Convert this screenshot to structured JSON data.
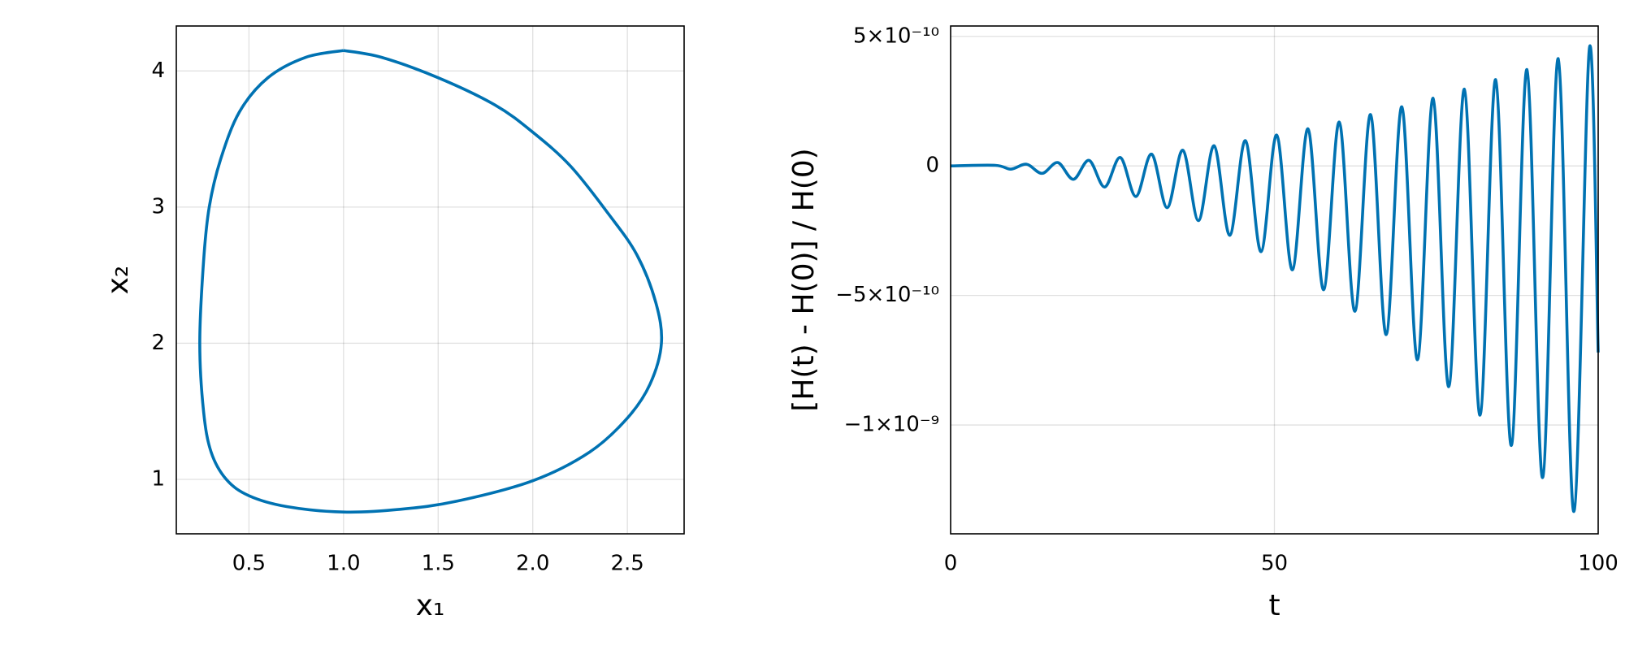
{
  "chart_data": [
    {
      "type": "line",
      "xlabel": "x₁",
      "ylabel": "x₂",
      "x": [
        1.0,
        0.8,
        0.6,
        0.45,
        0.35,
        0.29,
        0.26,
        0.24,
        0.26,
        0.3,
        0.38,
        0.5,
        0.7,
        1.0,
        1.3,
        1.6,
        2.0,
        2.3,
        2.5,
        2.62,
        2.68,
        2.65,
        2.55,
        2.4,
        2.2,
        2.0,
        1.8,
        1.5,
        1.2,
        1.0
      ],
      "series": [
        {
          "color": "#0072b2",
          "values": [
            4.15,
            4.1,
            3.95,
            3.7,
            3.35,
            3.0,
            2.6,
            2.0,
            1.5,
            1.2,
            1.0,
            0.88,
            0.8,
            0.76,
            0.78,
            0.84,
            0.99,
            1.2,
            1.45,
            1.7,
            2.0,
            2.3,
            2.65,
            2.95,
            3.3,
            3.55,
            3.75,
            3.95,
            4.1,
            4.15
          ]
        }
      ],
      "xlim": [
        0.116,
        2.8
      ],
      "ylim": [
        0.6,
        4.33
      ],
      "xticks": [
        0.5,
        {
          "value": 1,
          "label": "1.0"
        },
        1.5,
        {
          "value": 2,
          "label": "2.0"
        },
        2.5
      ],
      "yticks": [
        1,
        2,
        3,
        4
      ],
      "grid": true
    },
    {
      "type": "line",
      "xlabel": "t",
      "ylabel": "[H(t) - H(0)] / H(0)",
      "x": [
        0,
        6.89,
        9.3,
        11.72,
        14.13,
        16.55,
        18.96,
        21.38,
        23.79,
        26.21,
        28.62,
        31.04,
        33.45,
        35.87,
        38.28,
        40.7,
        43.11,
        45.53,
        47.94,
        50.36,
        52.77,
        55.19,
        57.6,
        60.02,
        62.43,
        64.85,
        67.26,
        69.68,
        72.09,
        74.51,
        76.92,
        79.34,
        81.75,
        84.17,
        86.58,
        89.0,
        91.41,
        93.83,
        96.24,
        98.66,
        100
      ],
      "series": [
        {
          "color": "#0072b2",
          "values": [
            0,
            2.2e-12,
            -1.25e-11,
            6.5e-12,
            -2.88e-11,
            1.29e-11,
            -5.18e-11,
            2.15e-11,
            -8.15e-11,
            3.23e-11,
            -1.18e-10,
            4.53e-11,
            -1.61e-10,
            6.05e-11,
            -2.11e-10,
            7.79e-11,
            -2.68e-10,
            9.74e-11,
            -3.31e-10,
            1.19e-10,
            -4.01e-10,
            1.43e-10,
            -4.78e-10,
            1.69e-10,
            -5.61e-10,
            1.98e-10,
            -6.51e-10,
            2.28e-10,
            -7.48e-10,
            2.61e-10,
            -8.52e-10,
            2.96e-10,
            -9.62e-10,
            3.33e-10,
            -1.079e-09,
            3.72e-10,
            -1.203e-09,
            4.14e-10,
            -1.334e-09,
            4.57e-10,
            -7.2e-10
          ]
        }
      ],
      "xlim": [
        0,
        100
      ],
      "ylim": [
        -1.42e-09,
        5.4e-10
      ],
      "xticks": [
        0,
        50,
        100
      ],
      "yticks": [
        {
          "value": 5e-10,
          "label": "5×10⁻¹⁰"
        },
        0,
        {
          "value": -5e-10,
          "label": "−5×10⁻¹⁰"
        },
        {
          "value": -1e-09,
          "label": "−1×10⁻⁹"
        }
      ],
      "grid": true
    }
  ]
}
